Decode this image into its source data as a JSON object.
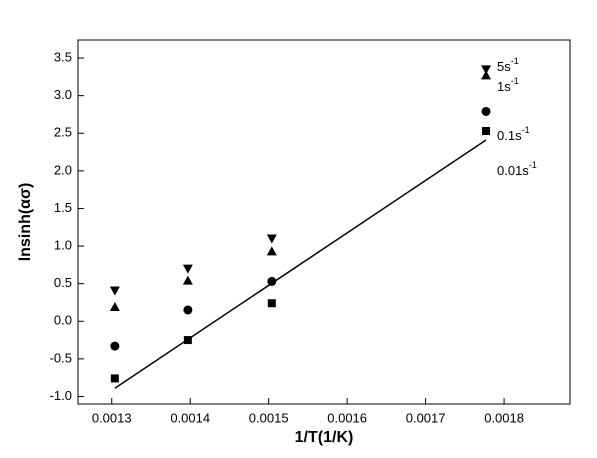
{
  "chart_data": {
    "type": "scatter",
    "xlabel": "1/T(1/K)",
    "ylabel": "lnsinh(ασ)",
    "xlim": [
      0.001257,
      0.001884
    ],
    "ylim": [
      -1.1,
      3.74
    ],
    "xticks": [
      0.0013,
      0.0014,
      0.0015,
      0.0016,
      0.0017,
      0.0018
    ],
    "yticks": [
      {
        "value": -1,
        "label": "-1.0"
      },
      -0.5,
      {
        "value": 0,
        "label": "0.0"
      },
      0.5,
      {
        "value": 1,
        "label": "1.0"
      },
      1.5,
      {
        "value": 2,
        "label": "2.0"
      },
      2.5,
      {
        "value": 3,
        "label": "3.0"
      },
      3.5
    ],
    "series": [
      {
        "marker": "square",
        "color": "#000000",
        "x": [
          0.001304,
          0.001397,
          0.001504,
          0.001777
        ],
        "values": [
          -0.76,
          -0.25,
          0.24,
          2.53
        ]
      },
      {
        "marker": "circle",
        "color": "#000000",
        "x": [
          0.001304,
          0.001397,
          0.001504,
          0.001777
        ],
        "values": [
          -0.33,
          0.15,
          0.53,
          2.79
        ]
      },
      {
        "marker": "triangle-up",
        "color": "#000000",
        "x": [
          0.001304,
          0.001397,
          0.001504,
          0.001777
        ],
        "values": [
          0.19,
          0.54,
          0.93,
          3.27
        ]
      },
      {
        "marker": "triangle-down",
        "color": "#000000",
        "x": [
          0.001304,
          0.001397,
          0.001504,
          0.001777
        ],
        "values": [
          0.41,
          0.7,
          1.1,
          3.35
        ]
      }
    ],
    "fit": {
      "x": [
        0.001304,
        0.001777
      ],
      "y": [
        -0.89,
        2.41
      ]
    },
    "annotations": [
      {
        "text": "5s",
        "sup": "-1"
      },
      {
        "text": "1s",
        "sup": "-1"
      },
      {
        "text": "0.1s",
        "sup": "-1"
      },
      {
        "text": "0.01s",
        "sup": "-1"
      }
    ]
  }
}
